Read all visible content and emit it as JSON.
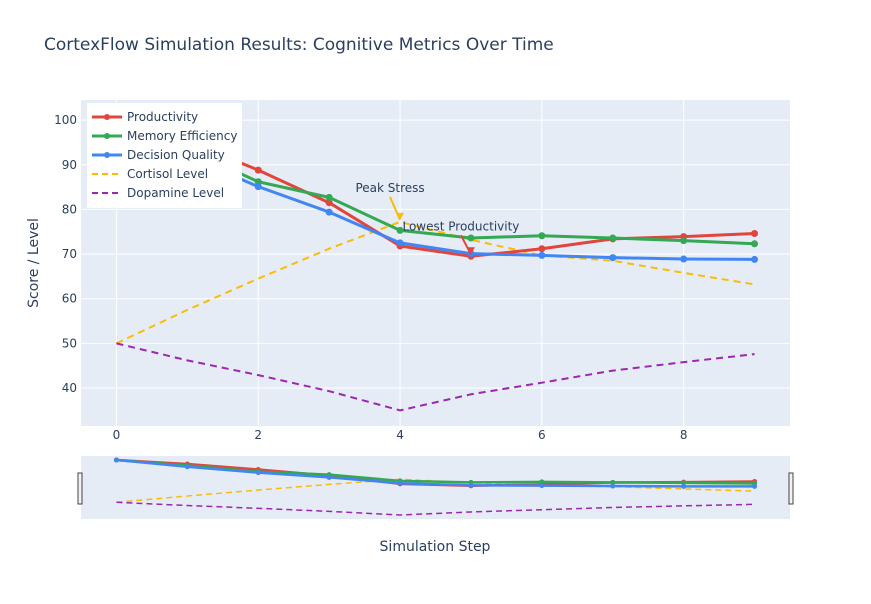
{
  "chart_data": {
    "type": "line",
    "title": "CortexFlow Simulation Results: Cognitive Metrics Over Time",
    "xlabel": "Simulation Step",
    "ylabel": "Score / Level",
    "xlim": [
      -0.5,
      9.5
    ],
    "ylim": [
      31.5,
      104.5
    ],
    "x_ticks": [
      "0",
      "2",
      "4",
      "6",
      "8"
    ],
    "y_ticks": [
      "40",
      "50",
      "60",
      "70",
      "80",
      "90",
      "100"
    ],
    "grid": true,
    "legend_position": "top-left",
    "x": [
      0,
      1,
      2,
      3,
      4,
      5,
      6,
      7,
      8,
      9
    ],
    "series": [
      {
        "name": "Productivity",
        "mode": "lines+markers",
        "dash": "solid",
        "color": "#e2453c",
        "values": [
          100,
          95.3,
          88.8,
          81.5,
          71.8,
          69.5,
          71.2,
          73.4,
          73.9,
          74.6
        ]
      },
      {
        "name": "Memory Efficiency",
        "mode": "lines+markers",
        "dash": "solid",
        "color": "#34a853",
        "values": [
          100,
          93.5,
          86.2,
          82.7,
          75.3,
          73.6,
          74.1,
          73.6,
          73.0,
          72.3
        ]
      },
      {
        "name": "Decision Quality",
        "mode": "lines+markers",
        "dash": "solid",
        "color": "#4285f4",
        "values": [
          100,
          92.0,
          85.1,
          79.4,
          72.5,
          70.1,
          69.7,
          69.2,
          68.9,
          68.8
        ]
      },
      {
        "name": "Cortisol Level",
        "mode": "lines",
        "dash": "dash",
        "color": "#fbbc05",
        "values": [
          50,
          57.5,
          64.5,
          71.2,
          77.2,
          73.2,
          69.7,
          68.5,
          65.8,
          63.2
        ]
      },
      {
        "name": "Dopamine Level",
        "mode": "lines",
        "dash": "dash",
        "color": "#9c27b0",
        "values": [
          50,
          46.2,
          42.9,
          39.3,
          35.0,
          38.6,
          41.2,
          43.9,
          45.8,
          47.6
        ]
      }
    ],
    "annotations": [
      {
        "text": "Peak Stress",
        "x": 4,
        "y": 77.2
      },
      {
        "text": "Lowest Productivity",
        "x": 5,
        "y": 69.5
      }
    ],
    "range_slider": true
  }
}
